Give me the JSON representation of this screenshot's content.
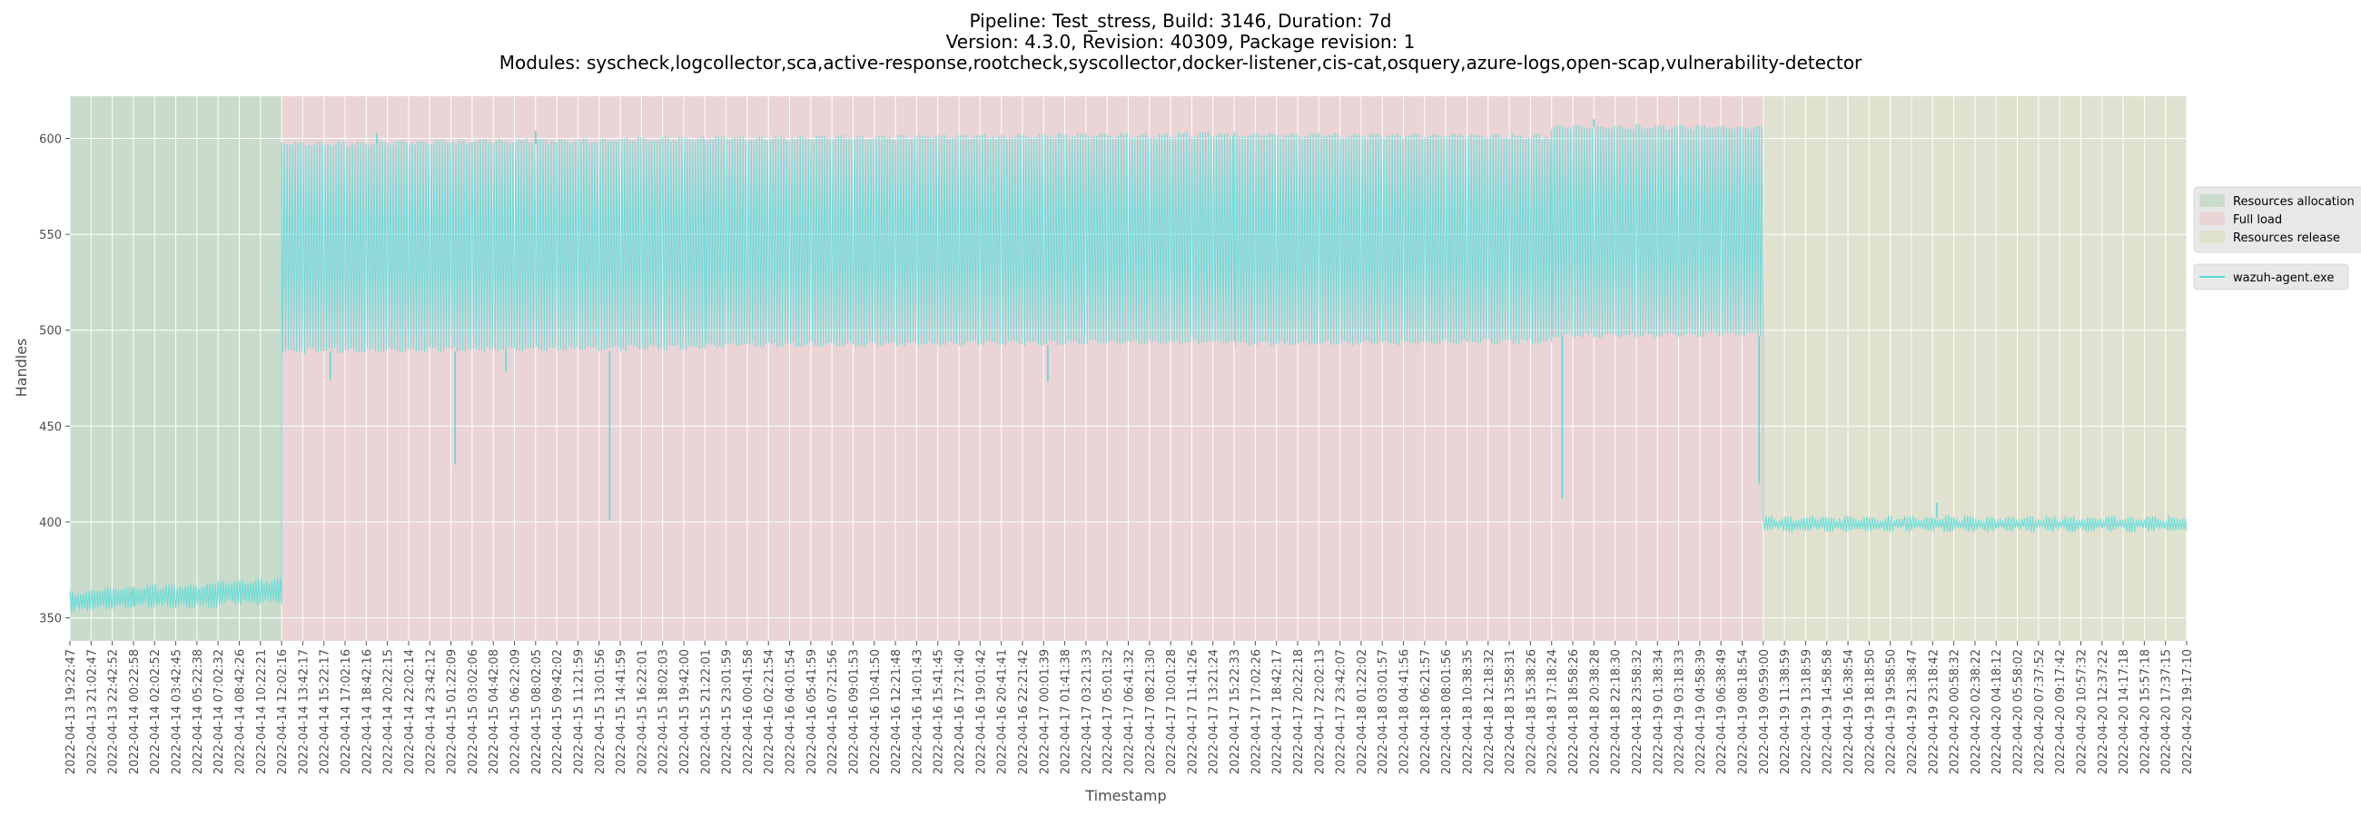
{
  "chart_data": {
    "type": "line",
    "title_lines": [
      "Pipeline: Test_stress, Build: 3146, Duration: 7d",
      "Version: 4.3.0, Revision: 40309, Package revision: 1",
      "Modules: syscheck,logcollector,sca,active-response,rootcheck,syscollector,docker-listener,cis-cat,osquery,azure-logs,open-scap,vulnerability-detector"
    ],
    "xlabel": "Timestamp",
    "ylabel": "Handles",
    "ylim": [
      338,
      622
    ],
    "yticks": [
      350,
      400,
      450,
      500,
      550,
      600
    ],
    "grid": true,
    "legend_position": "right",
    "x_ticks": [
      "2022-04-13 19:22:47",
      "2022-04-13 21:02:47",
      "2022-04-13 22:42:52",
      "2022-04-14 00:22:58",
      "2022-04-14 02:02:52",
      "2022-04-14 03:42:45",
      "2022-04-14 05:22:38",
      "2022-04-14 07:02:32",
      "2022-04-14 08:42:26",
      "2022-04-14 10:22:21",
      "2022-04-14 12:02:16",
      "2022-04-14 13:42:17",
      "2022-04-14 15:22:17",
      "2022-04-14 17:02:16",
      "2022-04-14 18:42:16",
      "2022-04-14 20:22:15",
      "2022-04-14 22:02:14",
      "2022-04-14 23:42:12",
      "2022-04-15 01:22:09",
      "2022-04-15 03:02:06",
      "2022-04-15 04:42:08",
      "2022-04-15 06:22:09",
      "2022-04-15 08:02:05",
      "2022-04-15 09:42:02",
      "2022-04-15 11:21:59",
      "2022-04-15 13:01:56",
      "2022-04-15 14:41:59",
      "2022-04-15 16:22:01",
      "2022-04-15 18:02:03",
      "2022-04-15 19:42:00",
      "2022-04-15 21:22:01",
      "2022-04-15 23:01:59",
      "2022-04-16 00:41:58",
      "2022-04-16 02:21:54",
      "2022-04-16 04:01:54",
      "2022-04-16 05:41:59",
      "2022-04-16 07:21:56",
      "2022-04-16 09:01:53",
      "2022-04-16 10:41:50",
      "2022-04-16 12:21:48",
      "2022-04-16 14:01:43",
      "2022-04-16 15:41:45",
      "2022-04-16 17:21:40",
      "2022-04-16 19:01:42",
      "2022-04-16 20:41:41",
      "2022-04-16 22:21:42",
      "2022-04-17 00:01:39",
      "2022-04-17 01:41:38",
      "2022-04-17 03:21:33",
      "2022-04-17 05:01:32",
      "2022-04-17 06:41:32",
      "2022-04-17 08:21:30",
      "2022-04-17 10:01:28",
      "2022-04-17 11:41:26",
      "2022-04-17 13:21:24",
      "2022-04-17 15:22:33",
      "2022-04-17 17:02:26",
      "2022-04-17 18:42:17",
      "2022-04-17 20:22:18",
      "2022-04-17 22:02:13",
      "2022-04-17 23:42:07",
      "2022-04-18 01:22:02",
      "2022-04-18 03:01:57",
      "2022-04-18 04:41:56",
      "2022-04-18 06:21:57",
      "2022-04-18 08:01:56",
      "2022-04-18 10:38:35",
      "2022-04-18 12:18:32",
      "2022-04-18 13:58:31",
      "2022-04-18 15:38:26",
      "2022-04-18 17:18:24",
      "2022-04-18 18:58:26",
      "2022-04-18 20:38:28",
      "2022-04-18 22:18:30",
      "2022-04-18 23:58:32",
      "2022-04-19 01:38:34",
      "2022-04-19 03:18:33",
      "2022-04-19 04:58:39",
      "2022-04-19 06:38:49",
      "2022-04-19 08:18:54",
      "2022-04-19 09:59:00",
      "2022-04-19 11:38:59",
      "2022-04-19 13:18:59",
      "2022-04-19 14:58:58",
      "2022-04-19 16:38:54",
      "2022-04-19 18:18:50",
      "2022-04-19 19:58:50",
      "2022-04-19 21:38:47",
      "2022-04-19 23:18:42",
      "2022-04-20 00:58:32",
      "2022-04-20 02:38:22",
      "2022-04-20 04:18:12",
      "2022-04-20 05:58:02",
      "2022-04-20 07:37:52",
      "2022-04-20 09:17:42",
      "2022-04-20 10:57:32",
      "2022-04-20 12:37:22",
      "2022-04-20 14:17:18",
      "2022-04-20 15:57:18",
      "2022-04-20 17:37:15",
      "2022-04-20 19:17:10"
    ],
    "phases": [
      {
        "name": "Resources allocation",
        "start_tick": 0,
        "end_tick": 10,
        "color": "#c9dccc"
      },
      {
        "name": "Full load",
        "start_tick": 10,
        "end_tick": 80,
        "color": "#ead4d6"
      },
      {
        "name": "Resources release",
        "start_tick": 80,
        "end_tick": 100,
        "color": "#e1e1cf"
      }
    ],
    "series": [
      {
        "name": "wazuh-agent.exe",
        "color": "#5bdcd9",
        "bands": [
          {
            "start_tick": 0,
            "end_tick": 3,
            "low_start": 354,
            "low_end": 356,
            "high_start": 363,
            "high_end": 366
          },
          {
            "start_tick": 3,
            "end_tick": 7,
            "low_start": 356,
            "low_end": 356,
            "high_start": 366,
            "high_end": 367
          },
          {
            "start_tick": 7,
            "end_tick": 10,
            "low_start": 358,
            "low_end": 358,
            "high_start": 368,
            "high_end": 370
          },
          {
            "start_tick": 10,
            "end_tick": 30,
            "low_start": 489,
            "low_end": 491,
            "high_start": 597,
            "high_end": 600
          },
          {
            "start_tick": 30,
            "end_tick": 55,
            "low_start": 492,
            "low_end": 494,
            "high_start": 600,
            "high_end": 602
          },
          {
            "start_tick": 55,
            "end_tick": 70,
            "low_start": 493,
            "low_end": 494,
            "high_start": 602,
            "high_end": 601
          },
          {
            "start_tick": 70,
            "end_tick": 80,
            "low_start": 497,
            "low_end": 498,
            "high_start": 606,
            "high_end": 606
          },
          {
            "start_tick": 80,
            "end_tick": 100,
            "low_start": 396,
            "low_end": 396,
            "high_start": 402,
            "high_end": 402
          }
        ],
        "dips": [
          {
            "tick": 12.3,
            "value": 474
          },
          {
            "tick": 18.2,
            "value": 430
          },
          {
            "tick": 20.6,
            "value": 478
          },
          {
            "tick": 25.5,
            "value": 401
          },
          {
            "tick": 46.2,
            "value": 473
          },
          {
            "tick": 70.5,
            "value": 412
          },
          {
            "tick": 79.8,
            "value": 420
          }
        ],
        "spikes": [
          {
            "tick": 14.5,
            "value": 603
          },
          {
            "tick": 22.0,
            "value": 604
          },
          {
            "tick": 72.0,
            "value": 610
          },
          {
            "tick": 88.2,
            "value": 410
          }
        ]
      }
    ]
  }
}
